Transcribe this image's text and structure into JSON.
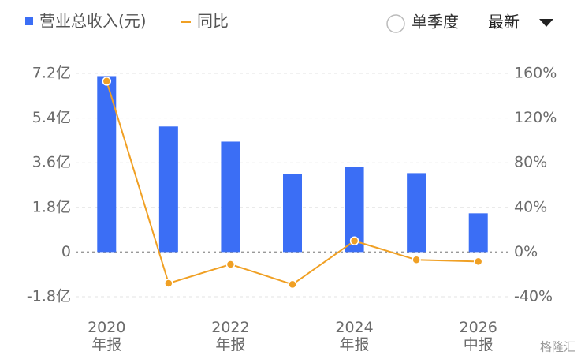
{
  "chart_data": {
    "type": "bar-line",
    "categories": [
      "2020\n年报",
      null,
      "2022\n年报",
      null,
      "2024\n年报",
      null,
      "2026\n中报"
    ],
    "series": [
      {
        "name": "营业总收入(元)",
        "type": "bar",
        "color": "#3b6ef5",
        "values": [
          7.09,
          5.06,
          4.45,
          3.15,
          3.44,
          3.18,
          1.56
        ]
      },
      {
        "name": "同比",
        "type": "line",
        "axis": "y2",
        "color": "#f0a024",
        "values": [
          153,
          -28,
          -11,
          -29,
          10,
          -7,
          -8.5
        ]
      }
    ],
    "ylim": [
      -1.8,
      7.2
    ],
    "yticks": [
      {
        "value": -1.8,
        "label": "-1.8亿"
      },
      0,
      {
        "value": 1.8,
        "label": "1.8亿"
      },
      {
        "value": 3.6,
        "label": "3.6亿"
      },
      {
        "value": 5.4,
        "label": "5.4亿"
      },
      {
        "value": 7.2,
        "label": "7.2亿"
      }
    ],
    "y2lim": [
      -40,
      160
    ],
    "y2ticks": [
      {
        "value": -40,
        "label": "-40%"
      },
      {
        "value": 0,
        "label": "0%"
      },
      {
        "value": 40,
        "label": "40%"
      },
      {
        "value": 80,
        "label": "80%"
      },
      {
        "value": 120,
        "label": "120%"
      },
      {
        "value": 160,
        "label": "160%"
      }
    ],
    "grid": true
  },
  "controls": {
    "single_quarter": "单季度",
    "latest": "最新"
  },
  "watermark": "格隆汇"
}
